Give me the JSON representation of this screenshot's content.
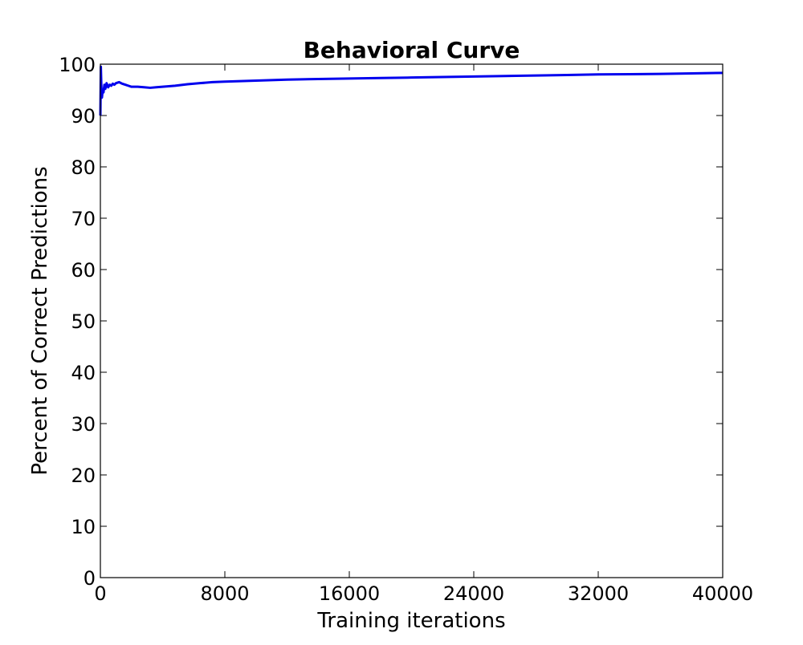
{
  "chart_data": {
    "type": "line",
    "title": "Behavioral Curve",
    "xlabel": "Training iterations",
    "ylabel": "Percent of Correct Predictions",
    "xlim": [
      0,
      40000
    ],
    "ylim": [
      0,
      100
    ],
    "xticks": [
      0,
      8000,
      16000,
      24000,
      32000,
      40000
    ],
    "yticks": [
      0,
      10,
      20,
      30,
      40,
      50,
      60,
      70,
      80,
      90,
      100
    ],
    "grid": false,
    "legend": "none",
    "series": [
      {
        "color": "#0000ee",
        "x": [
          0,
          30,
          60,
          100,
          150,
          200,
          260,
          320,
          400,
          500,
          600,
          700,
          800,
          900,
          1000,
          1200,
          1400,
          1600,
          1800,
          2000,
          2400,
          2800,
          3200,
          3600,
          4000,
          4800,
          5600,
          6400,
          7200,
          8000,
          9000,
          10000,
          11000,
          12000,
          14000,
          16000,
          18000,
          20000,
          22000,
          24000,
          26000,
          28000,
          30000,
          32000,
          34000,
          36000,
          38000,
          40000
        ],
        "y": [
          90,
          99.5,
          96,
          93.5,
          95,
          94.5,
          96,
          95.2,
          96.3,
          95.5,
          96,
          95.8,
          96.2,
          96,
          96.3,
          96.5,
          96.2,
          96,
          95.8,
          95.6,
          95.6,
          95.5,
          95.4,
          95.5,
          95.6,
          95.8,
          96.1,
          96.3,
          96.5,
          96.6,
          96.7,
          96.8,
          96.9,
          97,
          97.1,
          97.2,
          97.3,
          97.4,
          97.5,
          97.6,
          97.7,
          97.8,
          97.9,
          98,
          98.05,
          98.1,
          98.2,
          98.3
        ]
      }
    ]
  }
}
